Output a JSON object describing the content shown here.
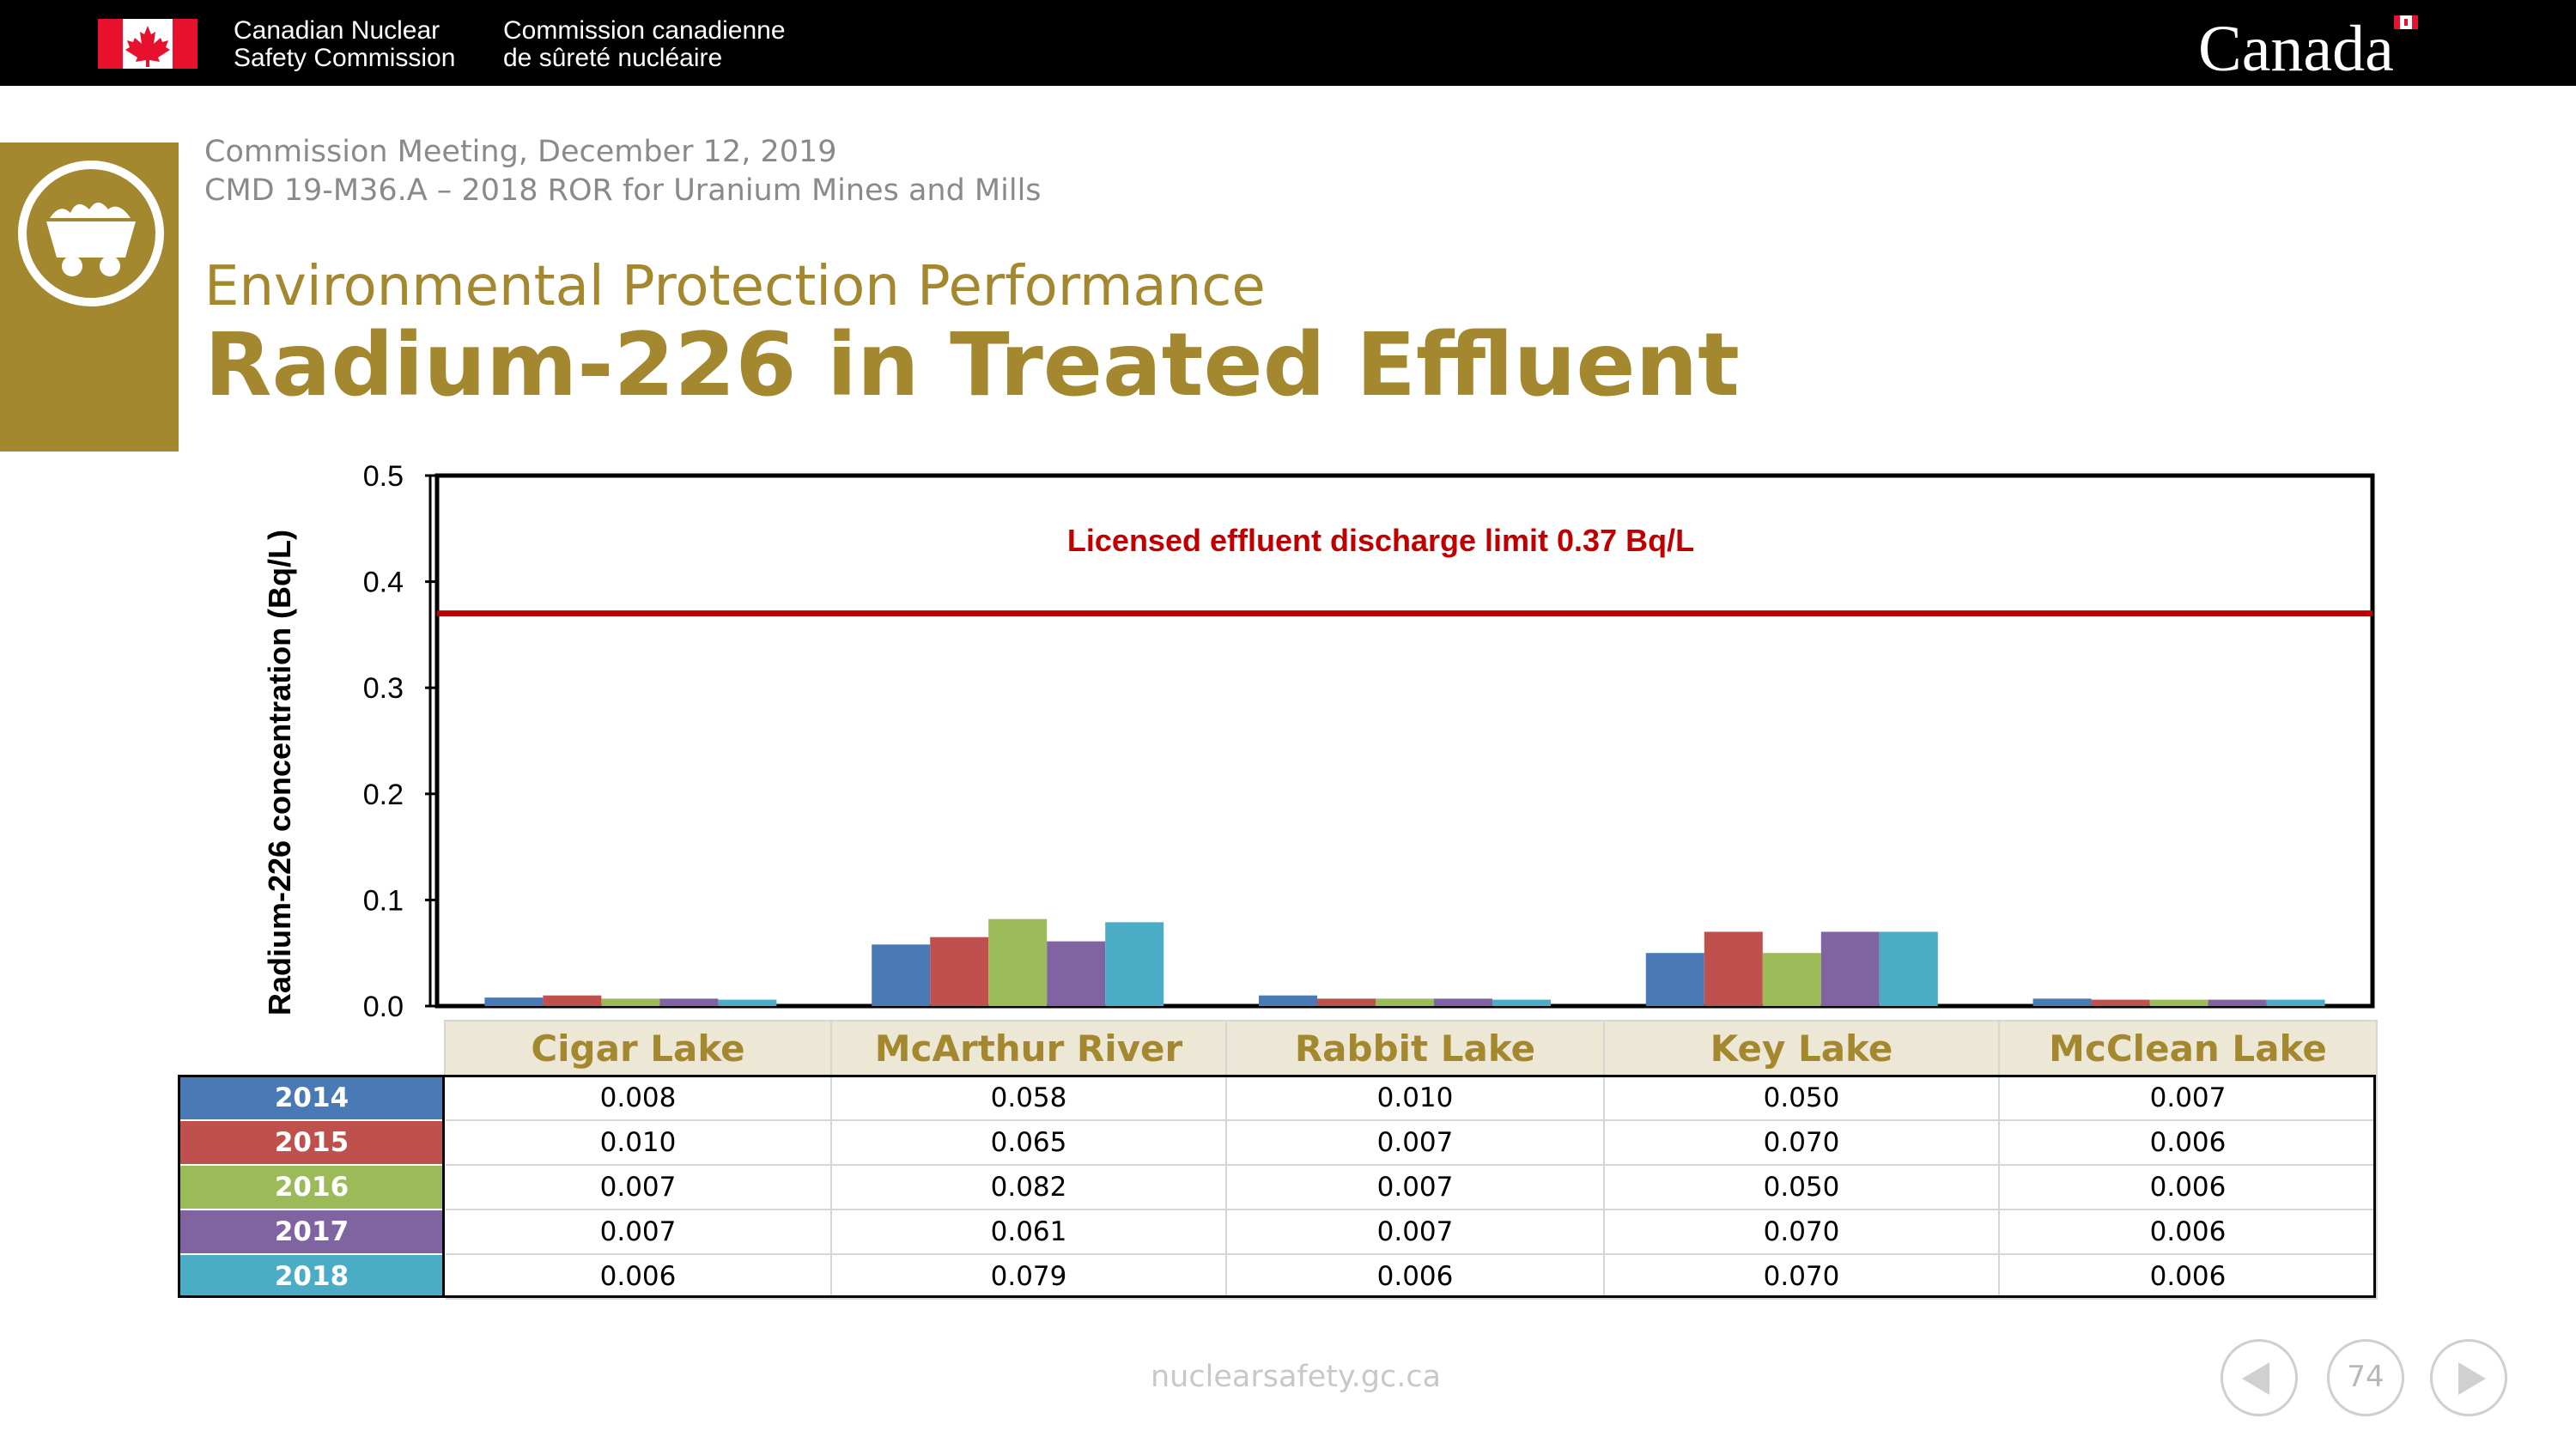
{
  "header": {
    "org_en_line1": "Canadian Nuclear",
    "org_en_line2": "Safety Commission",
    "org_fr_line1": "Commission canadienne",
    "org_fr_line2": "de sûreté nucléaire",
    "wordmark": "Canada"
  },
  "meeting": {
    "line1": "Commission Meeting, December 12, 2019",
    "line2": "CMD 19-M36.A – 2018 ROR for Uranium Mines and Mills"
  },
  "slide": {
    "subtitle": "Environmental Protection Performance",
    "title": "Radium-226 in Treated Effluent"
  },
  "chart_data": {
    "type": "bar",
    "title": "",
    "ylabel": "Radium-226 concentration (Bq/L)",
    "ylim": [
      0,
      0.5
    ],
    "yticks": [
      "0.0",
      "0.1",
      "0.2",
      "0.3",
      "0.4",
      "0.5"
    ],
    "grid": false,
    "categories": [
      "Cigar Lake",
      "McArthur River",
      "Rabbit Lake",
      "Key Lake",
      "McClean Lake"
    ],
    "series": [
      {
        "name": "2014",
        "color": "#4a7ab5",
        "values": [
          0.008,
          0.058,
          0.01,
          0.05,
          0.007
        ],
        "labels": [
          "0.008",
          "0.058",
          "0.010",
          "0.050",
          "0.007"
        ]
      },
      {
        "name": "2015",
        "color": "#c0504d",
        "values": [
          0.01,
          0.065,
          0.007,
          0.07,
          0.006
        ],
        "labels": [
          "0.010",
          "0.065",
          "0.007",
          "0.070",
          "0.006"
        ]
      },
      {
        "name": "2016",
        "color": "#9bbb59",
        "values": [
          0.007,
          0.082,
          0.007,
          0.05,
          0.006
        ],
        "labels": [
          "0.007",
          "0.082",
          "0.007",
          "0.050",
          "0.006"
        ]
      },
      {
        "name": "2017",
        "color": "#8064a2",
        "values": [
          0.007,
          0.061,
          0.007,
          0.07,
          0.006
        ],
        "labels": [
          "0.007",
          "0.061",
          "0.007",
          "0.070",
          "0.006"
        ]
      },
      {
        "name": "2018",
        "color": "#4bacc6",
        "values": [
          0.006,
          0.079,
          0.006,
          0.07,
          0.006
        ],
        "labels": [
          "0.006",
          "0.079",
          "0.006",
          "0.070",
          "0.006"
        ]
      }
    ],
    "limit": {
      "value": 0.37,
      "label": "Licensed effluent discharge limit 0.37 Bq/L",
      "color": "#c00000"
    }
  },
  "colors": {
    "accent": "#a4882f",
    "limit_line": "#c00000"
  },
  "footer": {
    "url": "nuclearsafety.gc.ca",
    "page": "74"
  }
}
